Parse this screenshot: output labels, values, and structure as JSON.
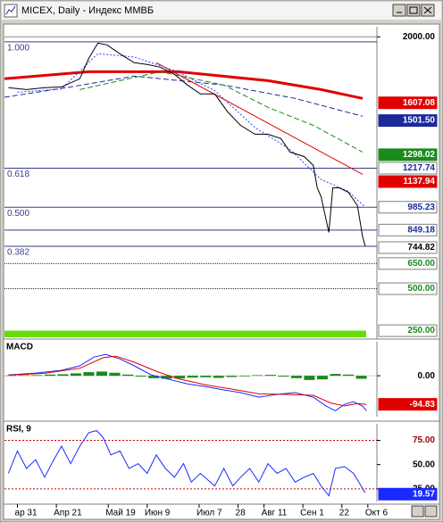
{
  "chart_data": [
    {
      "type": "line",
      "title": "MICEX, Daily - Индекс ММВБ",
      "xlim": [
        -1,
        27.7
      ],
      "ylim": [
        200,
        2060
      ],
      "yticks": [
        {
          "value": 2000,
          "label": "2000.00"
        }
      ],
      "hlines": [
        {
          "value": 2000,
          "color": "#888888"
        },
        {
          "value": 1970,
          "color": "#3a3a8c",
          "label": "1.000"
        },
        {
          "value": 1217.74,
          "color": "#3a3a8c",
          "label": "0.618"
        },
        {
          "value": 985.23,
          "color": "#3a3a8c",
          "label": "0.500"
        },
        {
          "value": 849.18,
          "color": "#3a3a8c"
        },
        {
          "value": 752.6,
          "color": "#3a3a8c",
          "label": "0.382"
        },
        {
          "value": 650,
          "color": "#303030",
          "dash": "1,1"
        },
        {
          "value": 500,
          "color": "#303030",
          "dash": "1,1"
        },
        {
          "value": 250,
          "color": "#66dd00",
          "fill_below": true
        }
      ],
      "markers": [
        {
          "value": 1607.08,
          "bg": "#e00000",
          "fg": "#ffffff"
        },
        {
          "value": 1501.5,
          "label": "1501.50",
          "bg": "#1a2a9a",
          "fg": "#ffffff"
        },
        {
          "value": 1298.02,
          "bg": "#1a8a1a",
          "fg": "#ffffff"
        },
        {
          "value": 1217.74,
          "bg": "#ffffff",
          "fg": "#1a2a9a"
        },
        {
          "value": 1137.94,
          "bg": "#e00000",
          "fg": "#ffffff"
        },
        {
          "value": 985.23,
          "bg": "#ffffff",
          "fg": "#1a2a9a"
        },
        {
          "value": 849.18,
          "bg": "#ffffff",
          "fg": "#1a2a9a"
        },
        {
          "value": 744.82,
          "bg": "#ffffff",
          "fg": "#000000"
        },
        {
          "value": 650,
          "label": "650.00",
          "bg": "#ffffff",
          "fg": "#1a8a1a"
        },
        {
          "value": 500,
          "label": "500.00",
          "bg": "#ffffff",
          "fg": "#1a8a1a"
        },
        {
          "value": 250,
          "label": "250.00",
          "bg": "#ffffff",
          "fg": "#1a8a1a"
        }
      ],
      "series": [
        {
          "type": "line",
          "color": "#e00000",
          "width": 3,
          "x": [
            -1,
            5.5,
            12.4,
            19.3,
            23.4,
            26.6
          ],
          "values": [
            1750,
            1792,
            1792,
            1739,
            1686,
            1633
          ]
        },
        {
          "type": "line",
          "color": "#1a2a9a",
          "dash": "6,3",
          "x": [
            -1,
            4,
            9,
            15.9,
            21.4,
            26.6
          ],
          "values": [
            1640,
            1700,
            1766,
            1713,
            1633,
            1527
          ]
        },
        {
          "type": "line",
          "color": "#1a8a1a",
          "dash": "6,3",
          "x": [
            4.8,
            11,
            15.9,
            19.3,
            22.8,
            26.6
          ],
          "values": [
            1686,
            1792,
            1713,
            1580,
            1473,
            1314
          ]
        },
        {
          "type": "line",
          "color": "#e00000",
          "x": [
            10.7,
            26.6
          ],
          "values": [
            1846,
            1181
          ]
        },
        {
          "type": "line",
          "color": "#3040ff",
          "dash": "2,2",
          "x": [
            0,
            3.4,
            6.2,
            9,
            12.1,
            15.2,
            18.3,
            21,
            23.4,
            25.5,
            26.8
          ],
          "values": [
            1670,
            1690,
            1900,
            1880,
            1800,
            1680,
            1460,
            1330,
            1150,
            1080,
            985
          ]
        },
        {
          "type": "line",
          "color": "#000000",
          "x": [
            -0.7,
            0.7,
            2.1,
            3.4,
            4.8,
            5.5,
            6.2,
            6.9,
            7.9,
            9,
            10,
            11,
            12.1,
            13.1,
            14.1,
            15.2,
            16.2,
            17.2,
            18.3,
            19.3,
            20.3,
            21,
            22.1,
            22.8,
            23.1,
            23.4,
            24,
            24.3,
            24.8,
            25.5,
            26.2,
            26.6,
            26.8
          ],
          "values": [
            1697,
            1686,
            1697,
            1702,
            1750,
            1872,
            1963,
            1952,
            1899,
            1846,
            1835,
            1819,
            1777,
            1713,
            1660,
            1660,
            1553,
            1473,
            1420,
            1420,
            1394,
            1314,
            1287,
            1234,
            1101,
            1048,
            835,
            1101,
            1101,
            1074,
            995,
            809,
            755
          ]
        }
      ]
    },
    {
      "type": "line",
      "title": "MACD",
      "xlim": [
        -1,
        27.7
      ],
      "ylim": [
        -136,
        113
      ],
      "yticks": [
        {
          "value": 0,
          "label": "0.00"
        }
      ],
      "hlines": [
        {
          "value": 0,
          "color": "#888888",
          "dash": "1,2"
        }
      ],
      "markers": [
        {
          "value": -94.83,
          "bg": "#e00000",
          "fg": "#ffffff"
        }
      ],
      "series": [
        {
          "type": "bar",
          "color": "#1a8a1a",
          "x": [
            -0.5,
            0.5,
            1.5,
            2.5,
            3.5,
            4.5,
            5.5,
            6.5,
            7.5,
            8.5,
            9.5,
            10.5,
            11.5,
            12.5,
            13.5,
            14.5,
            15.5,
            16.5,
            17.5,
            18.5,
            19.5,
            20.5,
            21.5,
            22.5,
            23.5,
            24.5,
            25.5,
            26.5
          ],
          "values": [
            1,
            2,
            2,
            4,
            5,
            8,
            12,
            14,
            10,
            4,
            -3,
            -8,
            -10,
            -9,
            -6,
            -5,
            -7,
            -4,
            -2,
            2,
            3,
            -3,
            -8,
            -14,
            -12,
            6,
            4,
            -10
          ]
        },
        {
          "type": "line",
          "color": "#1a2aff",
          "x": [
            -0.7,
            1.4,
            3.4,
            4.8,
            5.9,
            6.8,
            7.9,
            9,
            10.3,
            11.7,
            13.1,
            14.5,
            15.9,
            17.2,
            18.6,
            20,
            21.4,
            22.8,
            23.8,
            24.5,
            25.2,
            25.9,
            26.6,
            26.9
          ],
          "values": [
            3,
            9,
            18,
            33,
            62,
            71,
            56,
            33,
            3,
            -12,
            -27,
            -36,
            -47,
            -56,
            -71,
            -62,
            -56,
            -71,
            -101,
            -116,
            -95,
            -86,
            -101,
            -116
          ]
        },
        {
          "type": "line",
          "color": "#e00000",
          "x": [
            -0.7,
            2.1,
            4.8,
            6.6,
            7.6,
            9,
            10.7,
            12.4,
            14.5,
            16.6,
            18.6,
            20.7,
            22.8,
            24.1,
            25.2,
            26.2,
            26.9
          ],
          "values": [
            2,
            8,
            25,
            60,
            65,
            45,
            15,
            -10,
            -30,
            -45,
            -60,
            -62,
            -65,
            -90,
            -100,
            -92,
            -95
          ]
        }
      ]
    },
    {
      "type": "line",
      "title": "RSI, 9",
      "xlim": [
        -1,
        27.7
      ],
      "ylim": [
        12,
        92
      ],
      "yticks": [
        {
          "value": 75,
          "label": "75.00"
        },
        {
          "value": 50,
          "label": "50.00"
        },
        {
          "value": 25,
          "label": "25.00"
        }
      ],
      "xticks": [
        {
          "value": 0,
          "label": "ар 31"
        },
        {
          "value": 3,
          "label": "Апр 21"
        },
        {
          "value": 7,
          "label": "Май 19"
        },
        {
          "value": 10,
          "label": "Июн 9"
        },
        {
          "value": 14,
          "label": "Июл 7"
        },
        {
          "value": 17,
          "label": "28"
        },
        {
          "value": 19,
          "label": "Авг 11"
        },
        {
          "value": 22,
          "label": "Сен 1"
        },
        {
          "value": 25,
          "label": "22"
        },
        {
          "value": 27,
          "label": "Окт 6"
        }
      ],
      "hlines": [
        {
          "value": 75,
          "color": "#c00000",
          "dash": "2,2"
        },
        {
          "value": 25,
          "color": "#c00000",
          "dash": "2,2"
        }
      ],
      "markers": [
        {
          "value": 19.57,
          "bg": "#1a2aff",
          "fg": "#ffffff"
        }
      ],
      "series": [
        {
          "type": "line",
          "color": "#1a2aff",
          "x": [
            -0.7,
            0,
            0.7,
            1.4,
            2.1,
            2.8,
            3.4,
            4.1,
            4.8,
            5.5,
            6.1,
            6.6,
            7.2,
            7.9,
            8.6,
            9.3,
            10,
            10.7,
            11.4,
            12.1,
            12.8,
            13.4,
            14.1,
            15.2,
            15.9,
            16.6,
            17.2,
            17.9,
            18.6,
            19.3,
            20,
            20.7,
            21.4,
            22.1,
            22.8,
            23.4,
            24,
            24.5,
            25.2,
            25.9,
            26.3,
            26.8
          ],
          "values": [
            41,
            64,
            46,
            55,
            37,
            55,
            69,
            51,
            69,
            83,
            85,
            78,
            60,
            64,
            46,
            51,
            41,
            60,
            46,
            37,
            51,
            32,
            41,
            28,
            46,
            28,
            37,
            46,
            32,
            51,
            41,
            46,
            32,
            37,
            41,
            28,
            18,
            46,
            48,
            41,
            32,
            21
          ]
        }
      ]
    }
  ]
}
